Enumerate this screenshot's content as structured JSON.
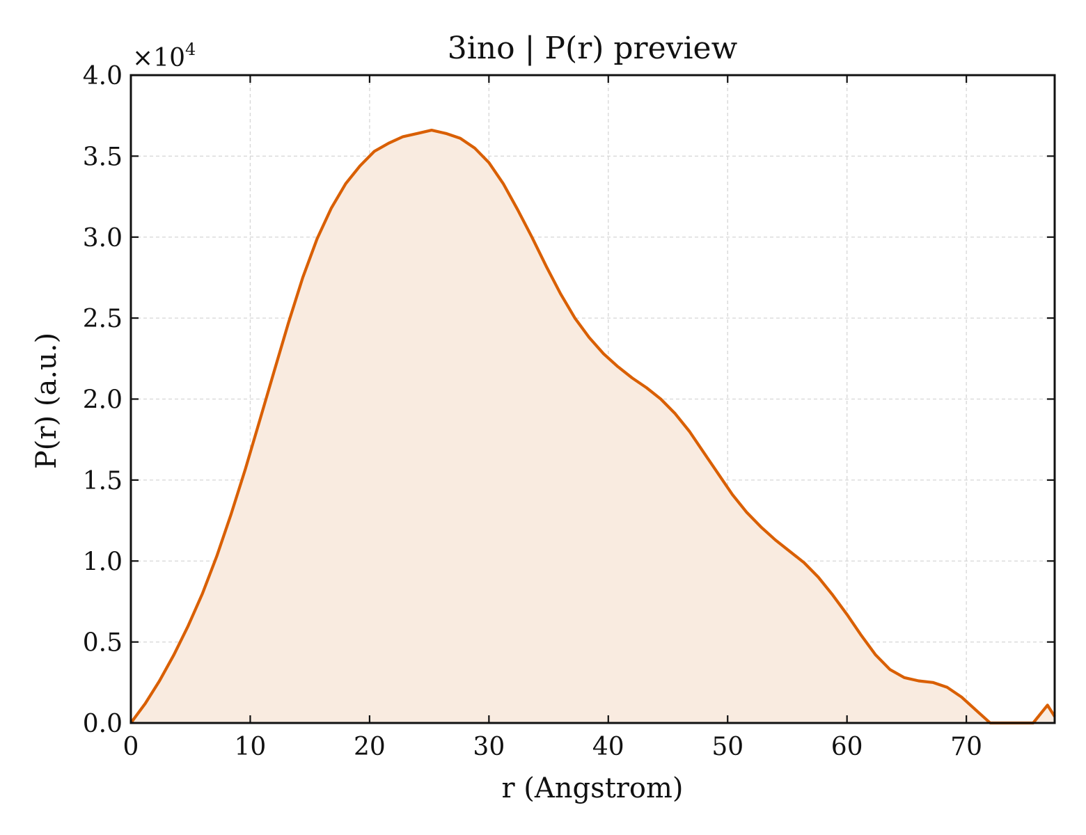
{
  "chart_data": {
    "type": "area",
    "title": "3ino | P(r) preview",
    "xlabel": "r (Angstrom)",
    "ylabel": "P(r) (a.u.)",
    "y_offset_label": "×10",
    "y_offset_exponent": "4",
    "xlim": [
      0,
      77.4
    ],
    "ylim": [
      0,
      4.0
    ],
    "y_scale_factor": 10000,
    "xticks": [
      0,
      10,
      20,
      30,
      40,
      50,
      60,
      70
    ],
    "xtick_labels": [
      "0",
      "10",
      "20",
      "30",
      "40",
      "50",
      "60",
      "70"
    ],
    "yticks": [
      0,
      0.5,
      1.0,
      1.5,
      2.0,
      2.5,
      3.0,
      3.5,
      4.0
    ],
    "ytick_labels": [
      "0.0",
      "0.5",
      "1.0",
      "1.5",
      "2.0",
      "2.5",
      "3.0",
      "3.5",
      "4.0"
    ],
    "grid": true,
    "line_color": "#d95f02",
    "fill_color": "#f9ebe0",
    "series": [
      {
        "x": [
          0.0,
          1.2,
          2.4,
          3.6,
          4.8,
          6.0,
          7.2,
          8.4,
          9.6,
          10.8,
          12.0,
          13.2,
          14.4,
          15.6,
          16.8,
          18.0,
          19.2,
          20.4,
          21.6,
          22.8,
          24.0,
          25.2,
          26.4,
          27.6,
          28.8,
          30.0,
          31.2,
          32.4,
          33.6,
          34.8,
          36.0,
          37.2,
          38.4,
          39.6,
          40.8,
          42.0,
          43.2,
          44.4,
          45.6,
          46.8,
          48.0,
          49.2,
          50.4,
          51.6,
          52.8,
          54.0,
          55.2,
          56.4,
          57.6,
          58.8,
          60.0,
          61.2,
          62.4,
          63.6,
          64.8,
          66.0,
          67.2,
          68.4,
          69.6,
          70.8,
          72.0,
          73.2,
          74.4,
          75.6,
          76.8,
          77.4
        ],
        "y": [
          0.0,
          0.12,
          0.26,
          0.42,
          0.6,
          0.8,
          1.03,
          1.29,
          1.57,
          1.87,
          2.17,
          2.47,
          2.75,
          2.99,
          3.18,
          3.33,
          3.44,
          3.53,
          3.58,
          3.62,
          3.64,
          3.66,
          3.64,
          3.61,
          3.55,
          3.46,
          3.33,
          3.17,
          3.0,
          2.82,
          2.65,
          2.5,
          2.38,
          2.28,
          2.2,
          2.13,
          2.07,
          2.0,
          1.91,
          1.8,
          1.67,
          1.54,
          1.41,
          1.3,
          1.21,
          1.13,
          1.06,
          0.99,
          0.9,
          0.79,
          0.67,
          0.54,
          0.42,
          0.33,
          0.28,
          0.26,
          0.25,
          0.22,
          0.16,
          0.08,
          0.0,
          0.0,
          0.0,
          0.0,
          0.11,
          0.04
        ]
      }
    ]
  }
}
